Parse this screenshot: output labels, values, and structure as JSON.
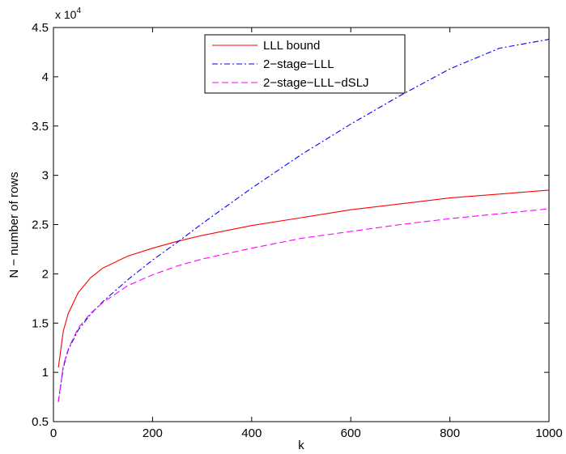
{
  "chart_data": {
    "type": "line",
    "xlabel": "k",
    "ylabel": "N − number of rows",
    "xlim": [
      0,
      1000
    ],
    "ylim": [
      5000,
      45000
    ],
    "y_exponent_label": {
      "base": "x 10",
      "exp": "4"
    },
    "x_ticks": [
      0,
      200,
      400,
      600,
      800,
      1000
    ],
    "x_tick_labels": [
      "0",
      "200",
      "400",
      "600",
      "800",
      "1000"
    ],
    "y_ticks": [
      5000,
      10000,
      15000,
      20000,
      25000,
      30000,
      35000,
      40000,
      45000
    ],
    "y_tick_labels": [
      "0.5",
      "1",
      "1.5",
      "2",
      "2.5",
      "3",
      "3.5",
      "4",
      "4.5"
    ],
    "grid": false,
    "legend_position": "top-center",
    "x": [
      10,
      20,
      30,
      50,
      75,
      100,
      150,
      200,
      250,
      300,
      400,
      500,
      600,
      700,
      800,
      900,
      1000
    ],
    "series": [
      {
        "name": "LLL bound",
        "color": "#ff0000",
        "dash": "solid",
        "values": [
          10500,
          14200,
          16000,
          18100,
          19600,
          20600,
          21800,
          22600,
          23300,
          23900,
          24900,
          25700,
          26500,
          27100,
          27700,
          28100,
          28500
        ]
      },
      {
        "name": "2−stage−LLL",
        "color": "#0000ff",
        "dash": "dashdot",
        "values": [
          7000,
          10500,
          12300,
          14300,
          15900,
          17200,
          19400,
          21400,
          23200,
          25100,
          28700,
          32100,
          35200,
          38100,
          40800,
          42900,
          43800
        ]
      },
      {
        "name": "2−stage−LLL−dSLJ",
        "color": "#ff00ff",
        "dash": "dashed",
        "values": [
          7000,
          10700,
          12400,
          14500,
          16000,
          17100,
          18800,
          19900,
          20800,
          21500,
          22600,
          23600,
          24300,
          25000,
          25600,
          26100,
          26600
        ]
      }
    ]
  }
}
